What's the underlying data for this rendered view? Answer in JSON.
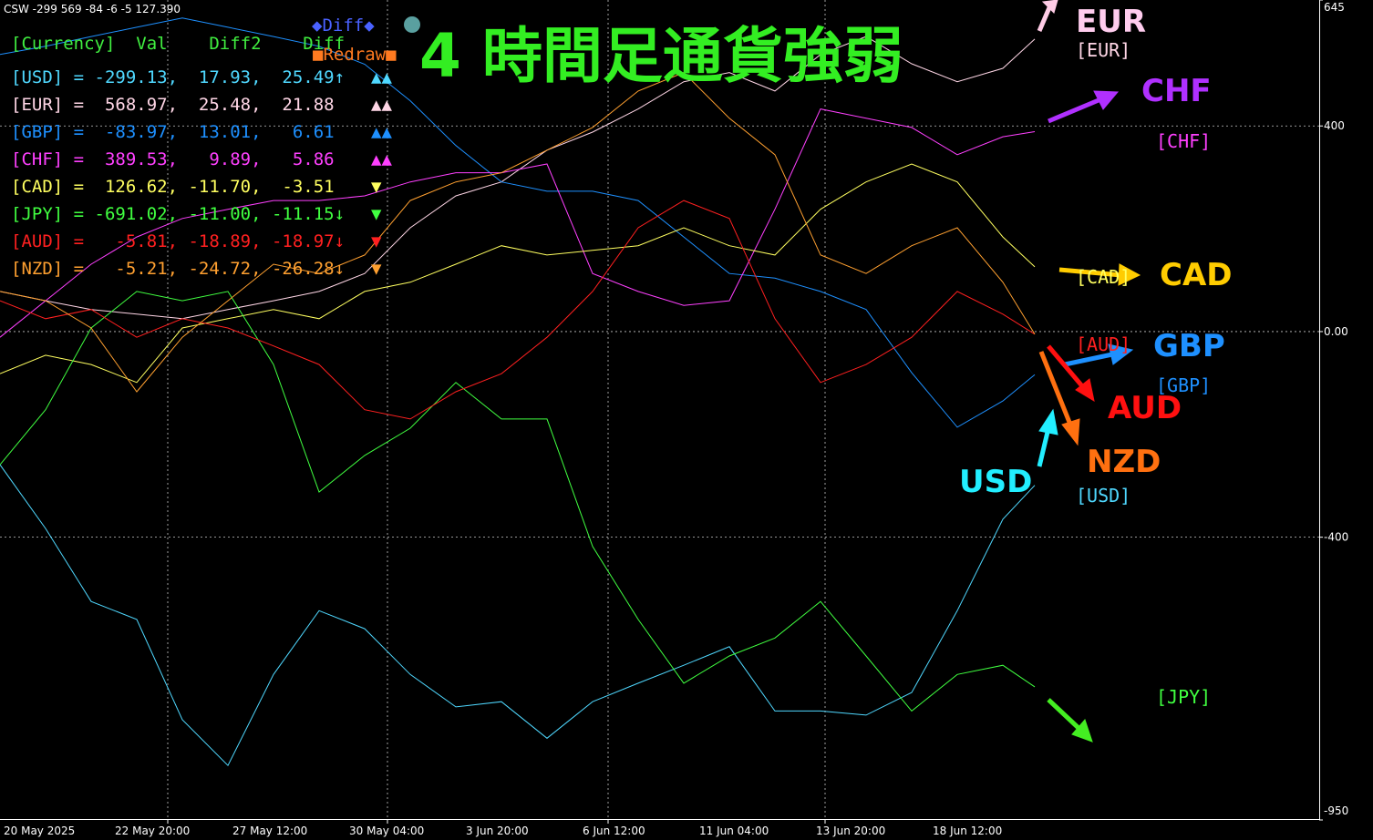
{
  "chart_data": {
    "type": "line",
    "indicator": "CSW -299 569 -84 -6 -5 127.390",
    "title": "4 時間足通貨強弱",
    "diff_toggle": "◆Diff◆",
    "redraw": "■Redraw■",
    "xlabels": [
      "20 May 2025",
      "22 May 20:00",
      "27 May 12:00",
      "30 May 04:00",
      "3 Jun 20:00",
      "6 Jun 12:00",
      "11 Jun 04:00",
      "13 Jun 20:00",
      "18 Jun 12:00"
    ],
    "ylim": [
      -950,
      645
    ],
    "yticks": [
      645,
      400,
      {
        "value": 0,
        "label": "0.00"
      },
      -400,
      -950
    ],
    "grid": true,
    "series": [
      {
        "name": "USD",
        "color": "#4fd8ff",
        "values": [
          -259,
          -383,
          -525,
          -560,
          -755,
          -844,
          -667,
          -543,
          -578,
          -667,
          -730,
          -720,
          -791,
          -720,
          -684,
          -649,
          -613,
          -738,
          -738,
          -746,
          -702,
          -543,
          -365,
          -299
        ]
      },
      {
        "name": "EUR",
        "color": "#ffd6e6",
        "values": [
          78,
          60,
          43,
          34,
          25,
          43,
          60,
          78,
          113,
          202,
          264,
          291,
          353,
          388,
          433,
          486,
          504,
          468,
          539,
          574,
          521,
          486,
          512,
          569
        ]
      },
      {
        "name": "GBP",
        "color": "#1e90ff",
        "values": [
          539,
          555,
          574,
          592,
          610,
          592,
          574,
          555,
          520,
          449,
          362,
          291,
          273,
          273,
          255,
          184,
          113,
          104,
          78,
          43,
          -80,
          -186,
          -135,
          -84
        ]
      },
      {
        "name": "CHF",
        "color": "#ff40ff",
        "values": [
          -11,
          60,
          131,
          184,
          220,
          238,
          255,
          255,
          264,
          291,
          309,
          309,
          326,
          113,
          78,
          51,
          60,
          238,
          433,
          415,
          397,
          344,
          379,
          389
        ]
      },
      {
        "name": "CAD",
        "color": "#ffff60",
        "values": [
          -82,
          -46,
          -64,
          -99,
          7,
          25,
          43,
          25,
          78,
          96,
          131,
          167,
          149,
          158,
          167,
          202,
          167,
          149,
          238,
          291,
          326,
          291,
          184,
          126
        ]
      },
      {
        "name": "JPY",
        "color": "#40ff40",
        "values": [
          -259,
          -152,
          7,
          78,
          60,
          78,
          -64,
          -312,
          -241,
          -188,
          -99,
          -170,
          -170,
          -418,
          -560,
          -684,
          -631,
          -596,
          -525,
          -631,
          -738,
          -667,
          -649,
          -691
        ]
      },
      {
        "name": "AUD",
        "color": "#ff2020",
        "values": [
          60,
          25,
          43,
          -11,
          25,
          7,
          -28,
          -64,
          -152,
          -170,
          -117,
          -82,
          -11,
          78,
          202,
          255,
          220,
          25,
          -99,
          -64,
          -11,
          78,
          34,
          -5
        ]
      },
      {
        "name": "NZD",
        "color": "#ffa030",
        "values": [
          78,
          60,
          7,
          -117,
          -11,
          60,
          131,
          113,
          149,
          255,
          291,
          309,
          353,
          397,
          468,
          504,
          415,
          344,
          149,
          113,
          167,
          202,
          96,
          -5
        ]
      }
    ],
    "table": {
      "header": "[Currency]  Val    Diff2    Diff",
      "rows": [
        [
          "[USD] = -299.13,  17.93,  25.49↑",
          "▲▲"
        ],
        [
          "[EUR] =  568.97,  25.48,  21.88 ",
          "▲▲"
        ],
        [
          "[GBP] =  -83.97,  13.01,   6.61 ",
          "▲▲"
        ],
        [
          "[CHF] =  389.53,   9.89,   5.86 ",
          "▲▲"
        ],
        [
          "[CAD] =  126.62, -11.70,  -3.51 ",
          "▼"
        ],
        [
          "[JPY] = -691.02, -11.00, -11.15↓",
          "▼"
        ],
        [
          "[AUD] =   -5.81, -18.89, -18.97↓",
          "▼"
        ],
        [
          "[NZD] =   -5.21, -24.72, -26.28↓",
          "▼"
        ]
      ]
    },
    "tags": [
      "[EUR]",
      "[CHF]",
      "[CAD]",
      "[AUD]",
      "[GBP]",
      "[USD]",
      "[JPY]"
    ]
  }
}
